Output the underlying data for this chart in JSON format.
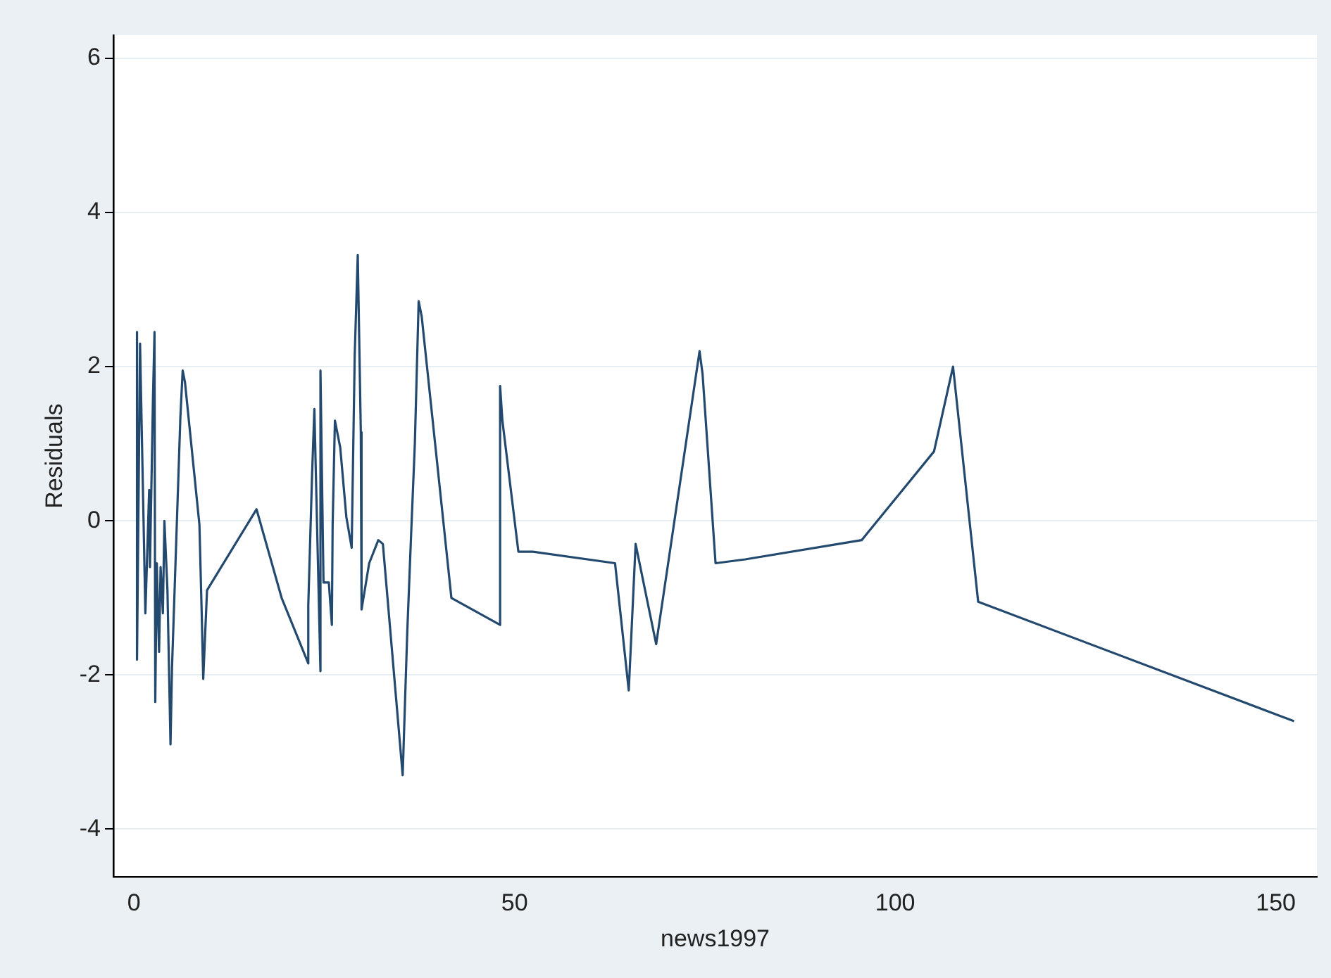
{
  "chart_data": {
    "type": "line",
    "xlabel": "news1997",
    "ylabel": "Residuals",
    "x": [
      0.4,
      0.4,
      0.8,
      1.2,
      1.5,
      2.0,
      2.1,
      2.5,
      2.7,
      2.8,
      3.0,
      3.3,
      3.5,
      3.8,
      4.0,
      4.4,
      4.8,
      5.0,
      6.1,
      6.4,
      6.7,
      8.6,
      8.9,
      9.1,
      9.6,
      16.1,
      19.4,
      22.9,
      22.9,
      23.4,
      23.7,
      24.5,
      24.5,
      24.9,
      25.6,
      26.0,
      26.1,
      26.4,
      27.1,
      27.9,
      28.6,
      29.0,
      29.4,
      29.8,
      29.9,
      30.9,
      32.1,
      32.7,
      35.3,
      35.9,
      36.4,
      36.9,
      37.4,
      37.8,
      41.7,
      48.1,
      48.1,
      48.4,
      50.5,
      52.4,
      63.2,
      65.0,
      65.9,
      68.6,
      74.3,
      74.7,
      76.4,
      80.3,
      95.6,
      105.1,
      107.6,
      110.9,
      152.4
    ],
    "series": [
      {
        "color": "#23496f",
        "values": [
          2.45,
          -1.8,
          2.3,
          0.3,
          -1.2,
          0.4,
          -0.6,
          1.6,
          2.45,
          -2.35,
          -0.55,
          -1.7,
          -0.6,
          -1.2,
          0.0,
          -0.9,
          -2.9,
          -1.9,
          1.35,
          1.95,
          1.8,
          -0.05,
          -1.2,
          -2.05,
          -0.9,
          0.15,
          -1.0,
          -1.85,
          -1.1,
          0.6,
          1.45,
          -1.95,
          1.95,
          -0.8,
          -0.8,
          -1.35,
          -0.05,
          1.3,
          0.95,
          0.05,
          -0.35,
          2.15,
          3.45,
          1.15,
          -1.15,
          -0.55,
          -0.25,
          -0.3,
          -3.3,
          -1.45,
          -0.2,
          1.0,
          2.85,
          2.65,
          -1.0,
          -1.35,
          1.75,
          1.3,
          -0.4,
          -0.4,
          -0.55,
          -2.2,
          -0.3,
          -1.6,
          2.2,
          1.9,
          -0.55,
          -0.5,
          -0.25,
          0.9,
          2.0,
          -1.05,
          -2.6
        ]
      }
    ],
    "xlim": [
      -2.7,
      155.4
    ],
    "xticks": [
      0,
      50,
      100,
      150
    ],
    "ylim": [
      -4.62,
      6.3
    ],
    "yticks": [
      -4,
      -2,
      0,
      2,
      4,
      6
    ],
    "grid": "y",
    "marker": "none",
    "line_style": "solid"
  }
}
